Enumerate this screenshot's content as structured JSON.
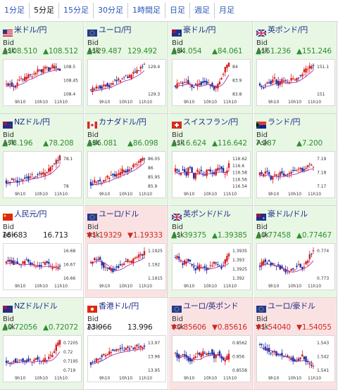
{
  "tabs": [
    {
      "label": "1分足"
    },
    {
      "label": "5分足"
    },
    {
      "label": "15分足"
    },
    {
      "label": "30分足"
    },
    {
      "label": "1時間足"
    },
    {
      "label": "日足"
    },
    {
      "label": "週足"
    },
    {
      "label": "月足"
    }
  ],
  "active_tab": "5分足",
  "labels": {
    "bid": "Bid",
    "ask": "Ask"
  },
  "colors": {
    "up_bg": "#e8f7e4",
    "down_bg": "#fbe2e2",
    "up_text": "#2f8f2f",
    "down_text": "#d0281f",
    "candle_up": "#d81e1e",
    "candle_down": "#1a2fa0",
    "ma": "#a020a0"
  },
  "pairs": [
    {
      "name": "米ドル/円",
      "flag": "us-flag",
      "state": "up",
      "bid": "▲108.510",
      "ask": "▲108.512",
      "x_ticks": [
        "9h10",
        "10h10",
        "11h10"
      ],
      "y_ticks": [
        "108.5",
        "108.45",
        "108.4"
      ]
    },
    {
      "name": "ユーロ/円",
      "flag": "eu-flag",
      "state": "up",
      "bid": "▲129.487",
      "ask": "129.492",
      "x_ticks": [
        "9h10",
        "10h10",
        "11h10"
      ],
      "y_ticks": [
        "129.4",
        "129.3"
      ]
    },
    {
      "name": "豪ドル/円",
      "flag": "au-flag",
      "state": "up",
      "bid": "▲84.054",
      "ask": "▲84.061",
      "x_ticks": [
        "9h10",
        "10h10",
        "11h10"
      ],
      "y_ticks": [
        "84",
        "83.9",
        "83.8"
      ]
    },
    {
      "name": "英ポンド/円",
      "flag": "gb-flag",
      "state": "up",
      "bid": "▲151.236",
      "ask": "▲151.246",
      "x_ticks": [
        "9h10",
        "10h10",
        "11h10"
      ],
      "y_ticks": [
        "151.1",
        "151"
      ]
    },
    {
      "name": "NZドル/円",
      "flag": "nz-flag",
      "state": "up",
      "bid": "▲78.196",
      "ask": "▲78.208",
      "x_ticks": [
        "9h10",
        "10h10",
        "11h10"
      ],
      "y_ticks": [
        "78.1",
        "78"
      ]
    },
    {
      "name": "カナダドル/円",
      "flag": "ca-flag",
      "state": "up",
      "bid": "▲86.081",
      "ask": "▲86.098",
      "x_ticks": [
        "9h10",
        "10h10",
        "11h10"
      ],
      "y_ticks": [
        "86.05",
        "86",
        "85.95",
        "85.9"
      ]
    },
    {
      "name": "スイスフラン/円",
      "flag": "ch-flag",
      "state": "up",
      "bid": "▲116.624",
      "ask": "▲116.642",
      "x_ticks": [
        "9h10",
        "10h10",
        "11h10"
      ],
      "y_ticks": [
        "116.62",
        "116.6",
        "116.58",
        "116.56",
        "116.54"
      ]
    },
    {
      "name": "ランド/円",
      "flag": "za-flag",
      "state": "up",
      "bid": "7.187",
      "ask": "▲7.200",
      "x_ticks": [
        "9h10",
        "10h10",
        "11h10"
      ],
      "y_ticks": [
        "7.19",
        "7.18",
        "7.17"
      ]
    },
    {
      "name": "人民元/円",
      "flag": "cn-flag",
      "state": "flat",
      "bid": "16.683",
      "ask": "16.713",
      "x_ticks": [
        "9h10",
        "10h10",
        "11h10"
      ],
      "y_ticks": [
        "16.68",
        "16.67",
        "16.66"
      ]
    },
    {
      "name": "ユーロ/ドル",
      "flag": "eu-flag",
      "state": "down",
      "bid": "▼1.19329",
      "ask": "▼1.19333",
      "x_ticks": [
        "9h10",
        "10h10",
        "11h10"
      ],
      "y_ticks": [
        "1.1925",
        "1.192",
        "1.1915"
      ]
    },
    {
      "name": "英ポンド/ドル",
      "flag": "gb-flag",
      "state": "up",
      "bid": "▲1.39375",
      "ask": "▲1.39385",
      "x_ticks": [
        "9h10",
        "10h10",
        "11h10"
      ],
      "y_ticks": [
        "1.3935",
        "1.393",
        "1.3925",
        "1.392"
      ]
    },
    {
      "name": "豪ドル/ドル",
      "flag": "au-flag",
      "state": "up",
      "bid": "▲0.77458",
      "ask": "▲0.77467",
      "x_ticks": [
        "9h10",
        "10h10",
        "11h10"
      ],
      "y_ticks": [
        "0.774",
        "0.773"
      ]
    },
    {
      "name": "NZドル/ドル",
      "flag": "nz-flag",
      "state": "up",
      "bid": "▲0.72056",
      "ask": "▲0.72072",
      "x_ticks": [
        "9h10",
        "10h10",
        "11h10"
      ],
      "y_ticks": [
        "0.7205",
        "0.72",
        "0.7195",
        "0.719"
      ]
    },
    {
      "name": "香港ドル/円",
      "flag": "hk-flag",
      "state": "flat",
      "bid": "13.966",
      "ask": "13.996",
      "x_ticks": [
        "9h10",
        "10h10",
        "11h10"
      ],
      "y_ticks": [
        "13.97",
        "13.96",
        "13.95"
      ]
    },
    {
      "name": "ユーロ/英ポンド",
      "flag": "eu-flag",
      "state": "down",
      "bid": "▼0.85606",
      "ask": "▼0.85616",
      "x_ticks": [
        "9h10",
        "10h10",
        "11h10"
      ],
      "y_ticks": [
        "0.8562",
        "0.856",
        "0.8558"
      ]
    },
    {
      "name": "ユーロ/豪ドル",
      "flag": "eu-flag",
      "state": "down",
      "bid": "▼1.54040",
      "ask": "▼1.54055",
      "x_ticks": [
        "9h10",
        "10h10",
        "11h10"
      ],
      "y_ticks": [
        "1.543",
        "1.542",
        "1.541"
      ]
    }
  ]
}
